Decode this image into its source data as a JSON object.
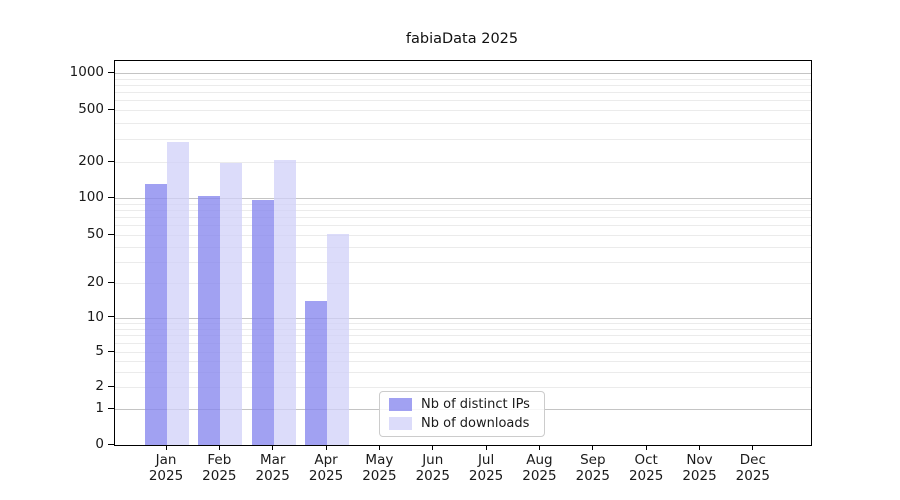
{
  "chart_data": {
    "type": "bar",
    "title": "fabiaData 2025",
    "xlabel": "",
    "ylabel": "",
    "x_months": [
      "Jan",
      "Feb",
      "Mar",
      "Apr",
      "May",
      "Jun",
      "Jul",
      "Aug",
      "Sep",
      "Oct",
      "Nov",
      "Dec"
    ],
    "x_year": "2025",
    "categories": [
      "Jan 2025",
      "Feb 2025",
      "Mar 2025",
      "Apr 2025",
      "May 2025",
      "Jun 2025",
      "Jul 2025",
      "Aug 2025",
      "Sep 2025",
      "Oct 2025",
      "Nov 2025",
      "Dec 2025"
    ],
    "series": [
      {
        "name": "Nb of distinct IPs",
        "color": "rgba(135,135,238,0.78)",
        "swatch_color": "rgba(135,135,238,0.78)",
        "values": [
          131,
          104,
          97,
          14,
          0,
          0,
          0,
          0,
          0,
          0,
          0,
          0
        ]
      },
      {
        "name": "Nb of downloads",
        "color": "rgba(208,208,248,0.75)",
        "swatch_color": "rgba(208,208,248,0.75)",
        "values": [
          287,
          195,
          207,
          51,
          0,
          0,
          0,
          0,
          0,
          0,
          0,
          0
        ]
      }
    ],
    "yscale": "symlog",
    "ylim": [
      0,
      1000
    ],
    "y_ticks": [
      0,
      1,
      2,
      5,
      10,
      20,
      50,
      100,
      200,
      500,
      1000
    ],
    "y_major_gridlines": [
      1,
      10,
      100,
      1000
    ],
    "grid": "horizontal major and minor gridlines",
    "legend_position": "lower center inside plot"
  },
  "legend": {
    "items": [
      {
        "label": "Nb of distinct IPs"
      },
      {
        "label": "Nb of downloads"
      }
    ]
  },
  "colors": {
    "background": "#ffffff",
    "spine": "#000000",
    "text": "#1a1a1a",
    "grid_major": "#c4c4c4",
    "grid_minor": "#ebebeb"
  }
}
